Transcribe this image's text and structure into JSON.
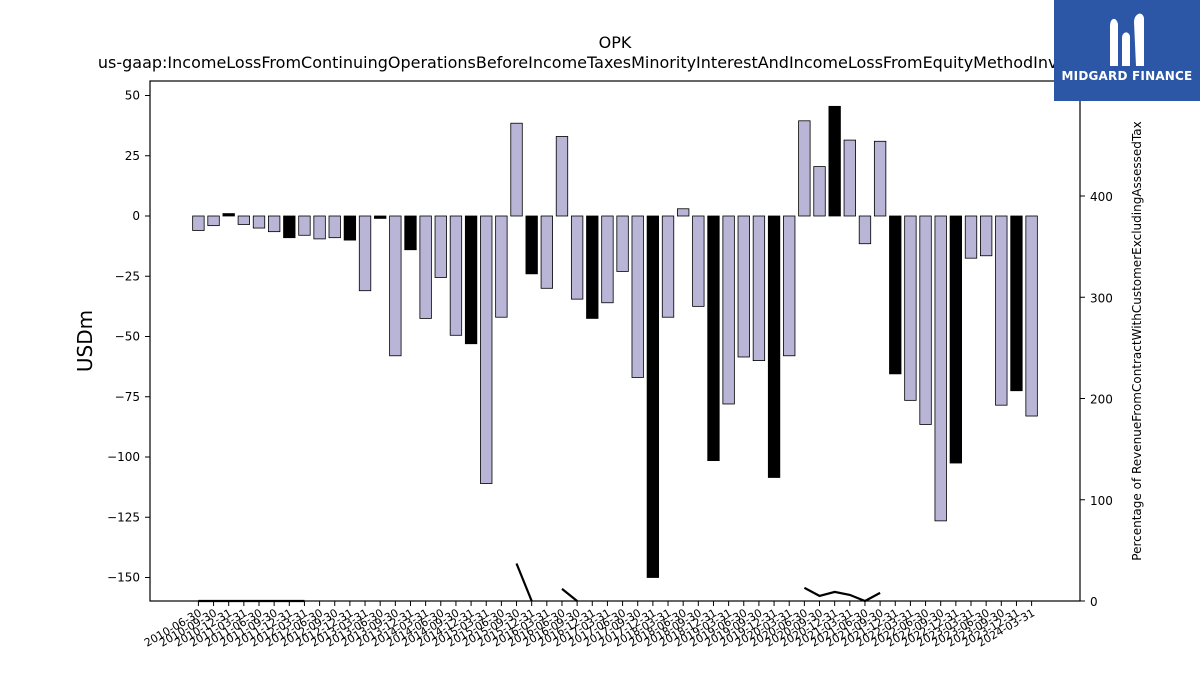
{
  "chart_data": {
    "type": "bar",
    "title": "OPK",
    "subtitle": "us-gaap:IncomeLossFromContinuingOperationsBeforeIncomeTaxesMinorityInterestAndIncomeLossFromEquityMethodInvestments",
    "ylabel": "USDm",
    "y2label": "Percentage of RevenueFromContractWithCustomerExcludingAssessedTax",
    "ylim": [
      -160,
      55
    ],
    "y2lim": [
      0,
      500
    ],
    "yticks": [
      50,
      25,
      0,
      -25,
      -50,
      -75,
      -100,
      -125,
      -150
    ],
    "y2ticks": [
      0,
      100,
      200,
      300,
      400
    ],
    "categories": [
      "2010-06-30",
      "2010-09-30",
      "2010-12-31",
      "2011-03-31",
      "2011-06-30",
      "2011-09-30",
      "2011-12-31",
      "2012-03-31",
      "2012-06-30",
      "2012-09-30",
      "2012-12-31",
      "2013-03-31",
      "2013-06-30",
      "2013-09-30",
      "2013-12-31",
      "2014-03-31",
      "2014-06-30",
      "2014-09-30",
      "2014-12-31",
      "2015-03-31",
      "2015-06-30",
      "2015-09-30",
      "2015-12-31",
      "2016-03-31",
      "2016-06-30",
      "2016-09-30",
      "2016-12-31",
      "2017-03-31",
      "2017-06-30",
      "2017-09-30",
      "2017-12-31",
      "2018-03-31",
      "2018-06-30",
      "2018-09-30",
      "2018-12-31",
      "2019-03-31",
      "2019-06-30",
      "2019-09-30",
      "2019-12-31",
      "2020-03-31",
      "2020-06-30",
      "2020-09-30",
      "2020-12-31",
      "2021-03-31",
      "2021-06-30",
      "2021-09-30",
      "2021-12-31",
      "2022-03-31",
      "2022-06-30",
      "2022-09-30",
      "2022-12-31",
      "2023-03-31",
      "2023-06-30",
      "2023-09-30",
      "2023-12-31",
      "2024-03-31"
    ],
    "xtick_labels": [
      "2010-06-30",
      "2010-09-30",
      "2010-12-31",
      "2011-03-31",
      "2011-06-30",
      "2011-09-30",
      "2011-12-31",
      "2012-03-31",
      "2012-06-30",
      "2012-09-30",
      "2012-12-31",
      "2013-03-31",
      "2013-06-30",
      "2013-09-30",
      "2013-12-31",
      "2014-03-31",
      "2014-06-30",
      "2014-09-30",
      "2014-12-31",
      "2015-03-31",
      "2015-06-30",
      "2015-09-30",
      "2015-12-31",
      "2016-03-31",
      "2016-06-30",
      "2016-09-30",
      "2016-12-31",
      "2017-03-31",
      "2017-06-30",
      "2017-09-30",
      "2017-12-31",
      "2018-03-31",
      "2018-06-30",
      "2018-09-30",
      "2018-12-31",
      "2019-03-31",
      "2019-06-30",
      "2019-09-30",
      "2019-12-31",
      "2020-03-31",
      "2020-06-30",
      "2020-09-30",
      "2020-12-31",
      "2021-03-31",
      "2021-06-30",
      "2021-09-30",
      "2021-12-31",
      "2022-03-31",
      "2022-06-30",
      "2022-09-30",
      "2022-12-31",
      "2023-03-31",
      "2023-06-30",
      "2023-09-30",
      "2023-12-31",
      "2024-03-31"
    ],
    "series": [
      {
        "values": [
          -6,
          -4,
          1,
          -3.5,
          -5,
          -6.5,
          -9,
          -8,
          -9.5,
          -9,
          -10,
          -31,
          -1,
          -58,
          -14,
          -42.5,
          -25.5,
          -49.5,
          -53,
          -111,
          -42,
          38.5,
          -24,
          -30,
          33,
          -34.5,
          -42.5,
          -36,
          -23,
          -67,
          -150,
          -42,
          3,
          -37.5,
          -101.5,
          -78,
          -58.5,
          -60,
          -108.5,
          -58,
          39.5,
          20.5,
          45.5,
          31.5,
          -11.5,
          31,
          -65.5,
          -76.5,
          -86.5,
          -126.5,
          -102.5,
          -17.5,
          -16.5,
          -78.5,
          -72.5,
          -83
        ],
        "highlight": [
          false,
          false,
          true,
          false,
          false,
          false,
          true,
          false,
          false,
          false,
          true,
          false,
          true,
          false,
          true,
          false,
          false,
          false,
          true,
          false,
          false,
          false,
          true,
          false,
          false,
          false,
          true,
          false,
          false,
          false,
          true,
          false,
          false,
          false,
          true,
          false,
          false,
          false,
          true,
          false,
          false,
          false,
          true,
          false,
          false,
          false,
          true,
          false,
          false,
          false,
          true,
          false,
          false,
          false,
          true,
          false
        ]
      },
      {
        "axis": "right",
        "type": "line",
        "values": [
          0,
          0,
          0,
          0,
          0,
          0,
          0,
          0,
          null,
          null,
          null,
          null,
          null,
          null,
          null,
          null,
          null,
          null,
          null,
          null,
          null,
          37,
          0,
          null,
          12,
          0,
          null,
          null,
          null,
          null,
          null,
          0,
          null,
          null,
          null,
          null,
          null,
          null,
          null,
          null,
          13,
          5,
          9,
          6,
          0,
          8,
          null,
          null,
          null,
          null,
          null,
          null,
          null,
          null,
          null,
          null
        ]
      }
    ],
    "colors": {
      "bar": "#b8b5d6",
      "highlight": "#000000",
      "line": "#000000",
      "axis": "#000000"
    }
  },
  "logo": {
    "text": "MIDGARD FINANCE",
    "color": "#2b57a6"
  }
}
